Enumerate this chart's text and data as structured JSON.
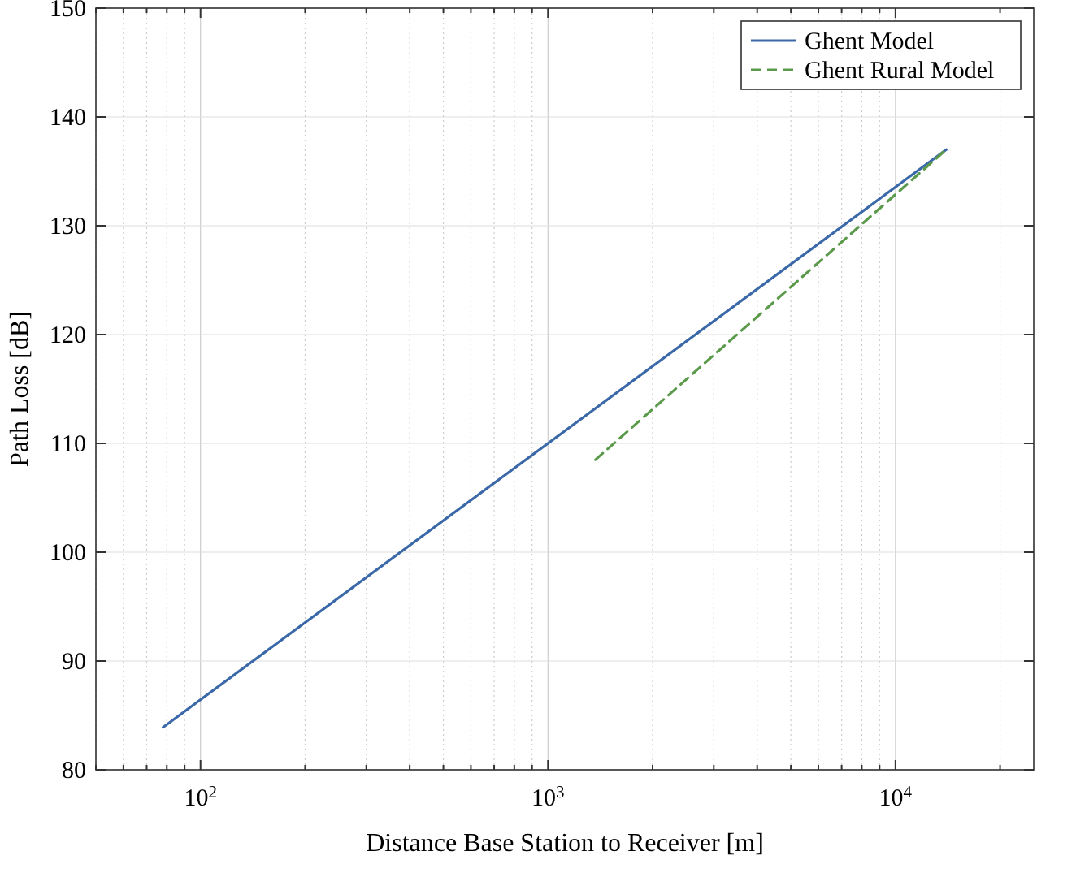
{
  "chart_data": {
    "type": "line",
    "xlabel": "Distance Base Station to Receiver [m]",
    "ylabel": "Path Loss [dB]",
    "log": "x",
    "xlim": [
      50,
      25000
    ],
    "xticks": [
      {
        "value": 50,
        "label": null
      },
      {
        "value": 60,
        "label": null
      },
      {
        "value": 70,
        "label": null
      },
      {
        "value": 80,
        "label": null
      },
      {
        "value": 90,
        "label": null
      },
      {
        "value": 100,
        "label": "10$^{2}$"
      },
      {
        "value": 200,
        "label": null
      },
      {
        "value": 300,
        "label": null
      },
      {
        "value": 400,
        "label": null
      },
      {
        "value": 500,
        "label": null
      },
      {
        "value": 600,
        "label": null
      },
      {
        "value": 700,
        "label": null
      },
      {
        "value": 800,
        "label": null
      },
      {
        "value": 900,
        "label": null
      },
      {
        "value": 1000,
        "label": "10$^{3}$"
      },
      {
        "value": 2000,
        "label": null
      },
      {
        "value": 3000,
        "label": null
      },
      {
        "value": 4000,
        "label": null
      },
      {
        "value": 5000,
        "label": null
      },
      {
        "value": 6000,
        "label": null
      },
      {
        "value": 7000,
        "label": null
      },
      {
        "value": 8000,
        "label": null
      },
      {
        "value": 9000,
        "label": null
      },
      {
        "value": 10000,
        "label": "10$^{4}$"
      },
      {
        "value": 20000,
        "label": null
      }
    ],
    "ylim": [
      80,
      150
    ],
    "yticks": [
      80,
      90,
      100,
      110,
      120,
      130,
      140,
      150
    ],
    "grid": true,
    "legend": "top right",
    "marker": "none",
    "series": [
      {
        "name": "Ghent Model",
        "color": "#3a68a8",
        "line_style": "solid",
        "x": [
          78,
          14000
        ],
        "values": [
          83.9,
          137
        ]
      },
      {
        "name": "Ghent Rural Model",
        "color": "#5a9a4a",
        "line_style": "dashed",
        "x": [
          1370,
          14000
        ],
        "values": [
          108.5,
          137
        ]
      }
    ]
  }
}
